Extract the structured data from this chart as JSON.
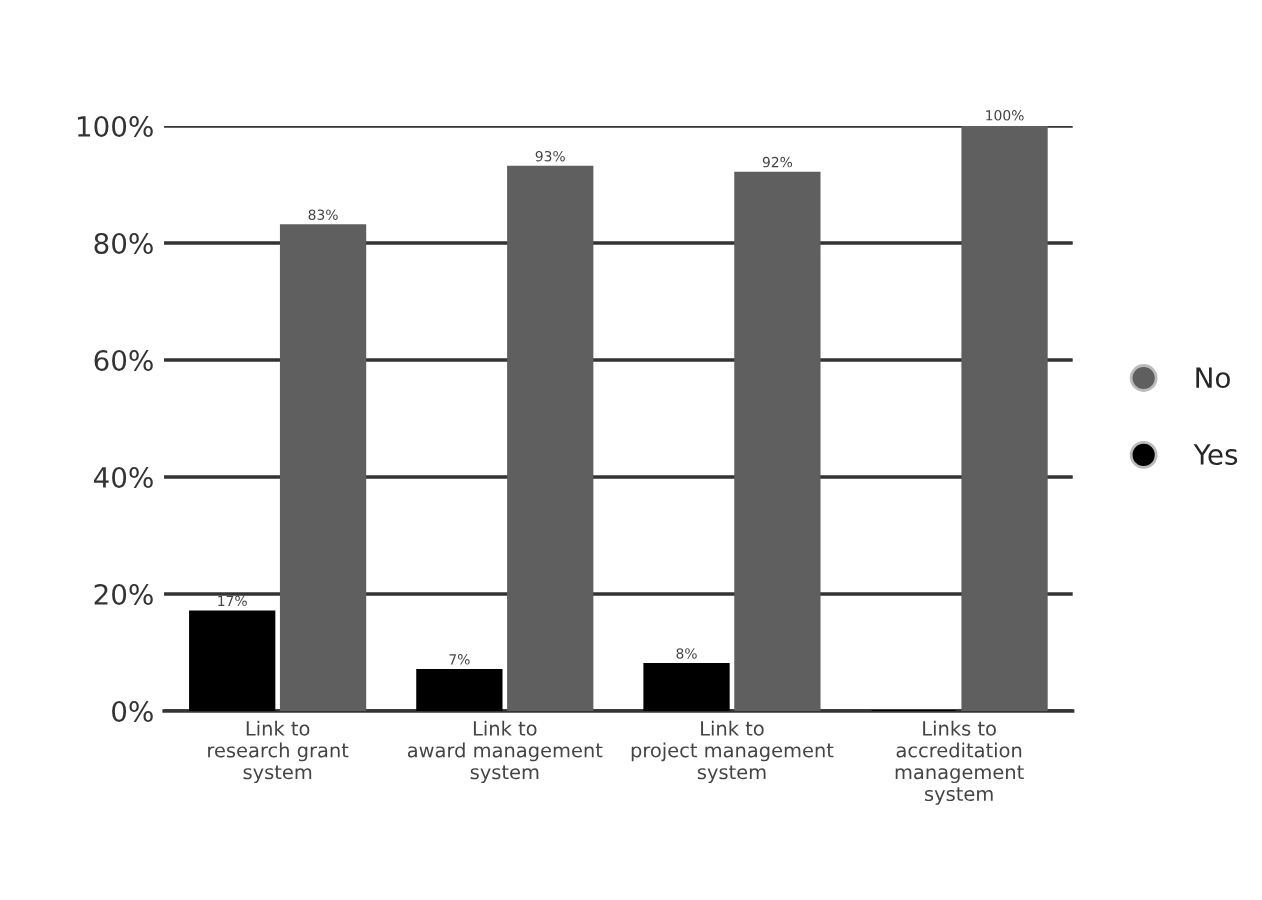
{
  "chart_data": {
    "type": "bar",
    "categories": [
      "Link to\nresearch grant\nsystem",
      "Link to\naward management\nsystem",
      "Link to\nproject management\nsystem",
      "Links to\naccreditation\nmanagement\nsystem"
    ],
    "series": [
      {
        "name": "Yes",
        "color": "#000000",
        "values": [
          17,
          7,
          8,
          0
        ],
        "value_labels": [
          "17%",
          "7%",
          "8%",
          null
        ]
      },
      {
        "name": "No",
        "color": "#5f5f5f",
        "values": [
          83,
          93,
          92,
          100
        ],
        "value_labels": [
          "83%",
          "93%",
          "92%",
          "100%"
        ]
      }
    ],
    "ylim": [
      0,
      100
    ],
    "yticks": [
      {
        "value": 0,
        "label": "0%"
      },
      {
        "value": 20,
        "label": "20%"
      },
      {
        "value": 40,
        "label": "40%"
      },
      {
        "value": 60,
        "label": "60%"
      },
      {
        "value": 80,
        "label": "80%"
      },
      {
        "value": 100,
        "label": "100%"
      }
    ],
    "grid": "y",
    "legend": "right"
  }
}
